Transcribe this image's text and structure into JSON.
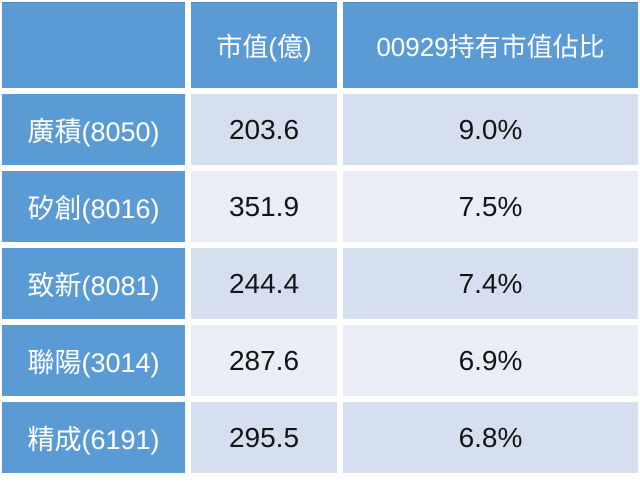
{
  "colors": {
    "accent_blue": "#5B9BD5",
    "band_dark": "#D6DFEF",
    "band_light": "#EAEDF6",
    "gutter_white": "#FFFFFF",
    "header_text": "#FFFFFF",
    "data_text": "#141414"
  },
  "table": {
    "header": {
      "corner": "",
      "market_cap": "市值(億)",
      "weight": "00929持有市值佔比"
    },
    "rows": [
      {
        "label": "廣積(8050)",
        "market_cap": "203.6",
        "weight": "9.0%"
      },
      {
        "label": "矽創(8016)",
        "market_cap": "351.9",
        "weight": "7.5%"
      },
      {
        "label": "致新(8081)",
        "market_cap": "244.4",
        "weight": "7.4%"
      },
      {
        "label": "聯陽(3014)",
        "market_cap": "287.6",
        "weight": "6.9%"
      },
      {
        "label": "精成(6191)",
        "market_cap": "295.5",
        "weight": "6.8%"
      }
    ]
  },
  "chart_data": {
    "type": "table",
    "title": "00929持有市值佔比",
    "columns": [
      "",
      "市值(億)",
      "00929持有市值佔比"
    ],
    "rows": [
      [
        "廣積(8050)",
        203.6,
        "9.0%"
      ],
      [
        "矽創(8016)",
        351.9,
        "7.5%"
      ],
      [
        "致新(8081)",
        244.4,
        "7.4%"
      ],
      [
        "聯陽(3014)",
        287.6,
        "6.9%"
      ],
      [
        "精成(6191)",
        295.5,
        "6.8%"
      ]
    ]
  }
}
